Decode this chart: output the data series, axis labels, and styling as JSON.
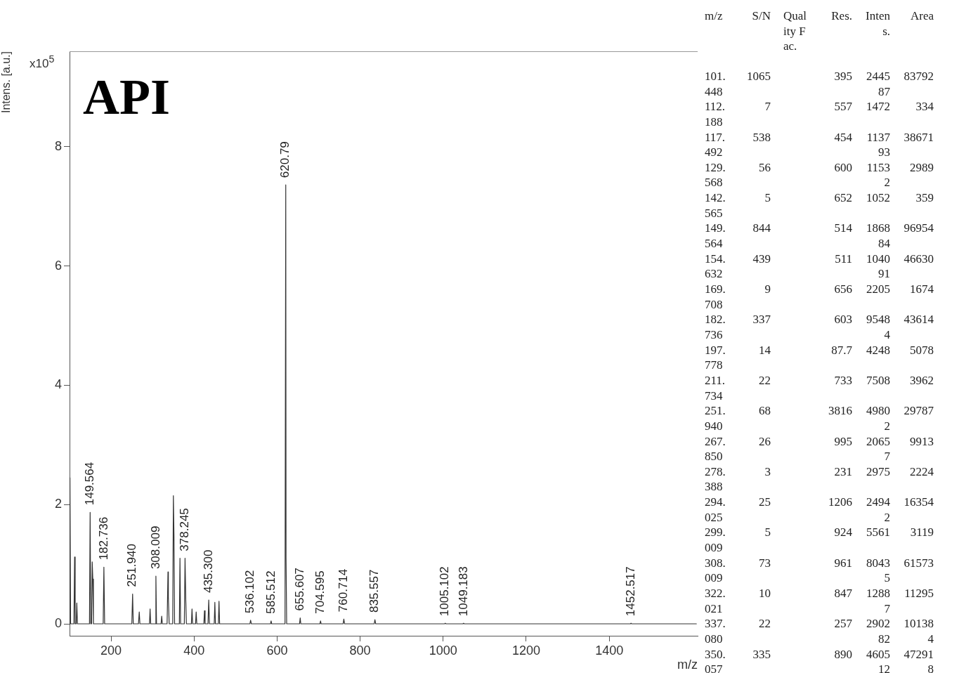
{
  "chart_data": {
    "type": "line",
    "title": "API",
    "xlabel": "m/z",
    "ylabel": "Intens. [a.u.]",
    "marker": "none",
    "line_style": "solid",
    "xlim": [
      100,
      1613
    ],
    "xticks": [
      200,
      400,
      600,
      800,
      1000,
      1200,
      1400
    ],
    "ylim": [
      -0.2,
      9.6
    ],
    "yticks": [
      0,
      2,
      4,
      6,
      8
    ],
    "series": [
      {
        "color": "#333333",
        "x": [
          100,
          100.5,
          101.4,
          102.5,
          110.5,
          112.2,
          113.5,
          116,
          117.5,
          119,
          148,
          149.6,
          151,
          153,
          154.6,
          156,
          157.5,
          181,
          182.7,
          184.5,
          250,
          251.9,
          253.5,
          266,
          267.9,
          269.5,
          292.5,
          294,
          295.5,
          306.5,
          308,
          309.5,
          320.5,
          322,
          323.5,
          335,
          337.1,
          338,
          340,
          348.5,
          350.1,
          351.5,
          353,
          364.5,
          366,
          367.5,
          376.5,
          378.2,
          380,
          381.5,
          393.5,
          395,
          396.5,
          403.5,
          405,
          406.5,
          423.5,
          425,
          426.5,
          433.5,
          435.3,
          437,
          448.5,
          450,
          451.5,
          458.5,
          460,
          461.5,
          534.5,
          536.1,
          538,
          584,
          585.5,
          587,
          619,
          620.8,
          621.5,
          623,
          654,
          655.6,
          657,
          703,
          704.6,
          706,
          759,
          760.7,
          762.5,
          834,
          835.6,
          837.5,
          1003.5,
          1005.1,
          1007,
          1047.5,
          1049.2,
          1051,
          1451,
          1452.5,
          1454,
          1610
        ],
        "values": [
          0,
          0,
          2.45,
          0,
          0,
          1.12,
          0,
          0,
          0.35,
          0,
          0,
          1.87,
          0,
          0,
          1.04,
          0.75,
          0,
          0,
          0.95,
          0,
          0,
          0.5,
          0,
          0,
          0.2,
          0,
          0,
          0.25,
          0,
          0,
          0.8,
          0,
          0,
          0.13,
          0,
          0,
          0.87,
          0.45,
          0,
          0,
          2.15,
          1.5,
          0,
          0,
          1.1,
          0,
          0,
          1.1,
          0.4,
          0,
          0,
          0.25,
          0,
          0,
          0.2,
          0,
          0,
          0.22,
          0,
          0,
          0.4,
          0,
          0,
          0.36,
          0,
          0,
          0.38,
          0,
          0,
          0.06,
          0,
          0,
          0.05,
          0,
          0,
          7.36,
          1.1,
          0,
          0,
          0.1,
          0,
          0,
          0.05,
          0,
          0,
          0.08,
          0,
          0,
          0.07,
          0,
          0,
          0.01,
          0,
          0,
          0.01,
          0,
          0,
          0.01,
          0,
          0
        ]
      }
    ],
    "annotations": [
      "x10$^{5}$",
      {
        "text": "149.564",
        "x": 149.564,
        "y": 1.87
      },
      {
        "text": "182.736",
        "x": 182.736,
        "y": 0.95
      },
      {
        "text": "251.940",
        "x": 251.94,
        "y": 0.5
      },
      {
        "text": "308.009",
        "x": 308.009,
        "y": 0.8
      },
      {
        "text": "378.245",
        "x": 378.245,
        "y": 1.1
      },
      {
        "text": "435.300",
        "x": 435.3,
        "y": 0.4
      },
      {
        "text": "536.102",
        "x": 536.102,
        "y": 0.06
      },
      {
        "text": "585.512",
        "x": 585.512,
        "y": 0.05
      },
      {
        "text": "620.79",
        "x": 620.79,
        "y": 7.36
      },
      {
        "text": "655.607",
        "x": 655.607,
        "y": 0.1
      },
      {
        "text": "704.595",
        "x": 704.595,
        "y": 0.05
      },
      {
        "text": "760.714",
        "x": 760.714,
        "y": 0.08
      },
      {
        "text": "835.557",
        "x": 835.557,
        "y": 0.07
      },
      {
        "text": "1005.102",
        "x": 1005.102,
        "y": 0.01
      },
      {
        "text": "1049.183",
        "x": 1049.183,
        "y": 0.01
      },
      {
        "text": "1452.517",
        "x": 1452.517,
        "y": 0.01
      },
      "m/z",
      "S/N",
      "Quality Fac.",
      "Res.",
      "Intens.",
      "Area",
      "101.448",
      "1065",
      "395",
      "244587",
      "83792",
      "112.188",
      "7",
      "557",
      "1472",
      "334",
      "117.492",
      "538",
      "454",
      "113793",
      "38671",
      "129.568",
      "56",
      "600",
      "11532",
      "2989",
      "142.565",
      "5",
      "652",
      "1052",
      "359",
      "149.564",
      "844",
      "514",
      "186884",
      "96954",
      "154.632",
      "439",
      "511",
      "104091",
      "46630",
      "169.708",
      "9",
      "656",
      "2205",
      "1674",
      "182.736",
      "337",
      "603",
      "95484",
      "43614",
      "197.778",
      "14",
      "87.7",
      "4248",
      "5078",
      "211.734",
      "22",
      "733",
      "7508",
      "3962",
      "251.940",
      "68",
      "3816",
      "49802",
      "29787",
      "267.850",
      "26",
      "995",
      "20657",
      "9913",
      "278.388",
      "3",
      "231",
      "2975",
      "2224",
      "294.025",
      "25",
      "1206",
      "24942",
      "16354",
      "299.009",
      "5",
      "924",
      "5561",
      "3119",
      "308.009",
      "73",
      "961",
      "80435",
      "61573",
      "322.021",
      "10",
      "847",
      "12887",
      "11295",
      "337.080",
      "22",
      "257",
      "290282",
      "101384",
      "350.057",
      "335",
      "890",
      "460512",
      "472918"
    ]
  }
}
